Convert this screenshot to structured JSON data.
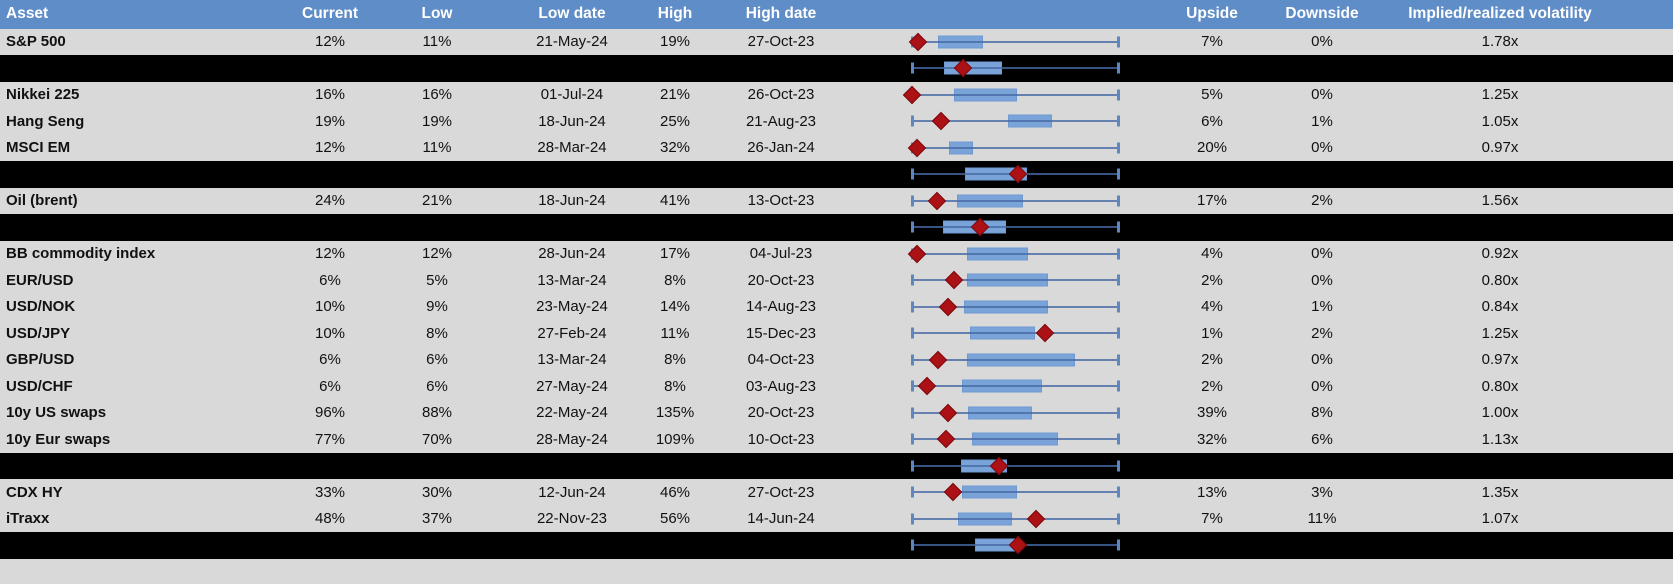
{
  "table": {
    "columns": [
      {
        "key": "asset",
        "label": "Asset"
      },
      {
        "key": "current",
        "label": "Current"
      },
      {
        "key": "low",
        "label": "Low"
      },
      {
        "key": "low_date",
        "label": "Low date"
      },
      {
        "key": "high",
        "label": "High"
      },
      {
        "key": "high_date",
        "label": "High date"
      },
      {
        "key": "range_chart",
        "label": ""
      },
      {
        "key": "upside",
        "label": "Upside"
      },
      {
        "key": "downside",
        "label": "Downside"
      },
      {
        "key": "implied_realized",
        "label": "Implied/realized volatility"
      }
    ],
    "rows": [
      {
        "type": "data",
        "asset": "S&P 500",
        "current": "12%",
        "low": "11%",
        "low_date": "21-May-24",
        "high": "19%",
        "high_date": "27-Oct-23",
        "upside": "7%",
        "downside": "0%",
        "implied_realized": "1.78x",
        "boxplot": {
          "whisker": [
            0,
            1
          ],
          "box": [
            0.128,
            0.346
          ],
          "diamond": 0.031
        }
      },
      {
        "type": "agg",
        "boxplot": {
          "whisker": [
            0,
            1
          ],
          "box": [
            0.157,
            0.435
          ],
          "diamond": 0.249
        }
      },
      {
        "type": "data",
        "asset": "Nikkei 225",
        "current": "16%",
        "low": "16%",
        "low_date": "01-Jul-24",
        "high": "21%",
        "high_date": "26-Oct-23",
        "upside": "5%",
        "downside": "0%",
        "implied_realized": "1.25x",
        "boxplot": {
          "whisker": [
            0,
            1
          ],
          "box": [
            0.205,
            0.512
          ],
          "diamond": 0.0
        }
      },
      {
        "type": "data",
        "asset": "Hang Seng",
        "current": "19%",
        "low": "19%",
        "low_date": "18-Jun-24",
        "high": "25%",
        "high_date": "21-Aug-23",
        "upside": "6%",
        "downside": "1%",
        "implied_realized": "1.05x",
        "boxplot": {
          "whisker": [
            0,
            1
          ],
          "box": [
            0.466,
            0.679
          ],
          "diamond": 0.141
        }
      },
      {
        "type": "data",
        "asset": "MSCI EM",
        "current": "12%",
        "low": "11%",
        "low_date": "28-Mar-24",
        "high": "32%",
        "high_date": "26-Jan-24",
        "upside": "20%",
        "downside": "0%",
        "implied_realized": "0.97x",
        "boxplot": {
          "whisker": [
            0,
            1
          ],
          "box": [
            0.181,
            0.298
          ],
          "diamond": 0.024
        }
      },
      {
        "type": "agg",
        "boxplot": {
          "whisker": [
            0,
            1
          ],
          "box": [
            0.257,
            0.557
          ],
          "diamond": 0.516
        }
      },
      {
        "type": "data",
        "asset": "Oil (brent)",
        "current": "24%",
        "low": "21%",
        "low_date": "18-Jun-24",
        "high": "41%",
        "high_date": "13-Oct-23",
        "upside": "17%",
        "downside": "2%",
        "implied_realized": "1.56x",
        "boxplot": {
          "whisker": [
            0,
            1
          ],
          "box": [
            0.217,
            0.54
          ],
          "diamond": 0.123
        }
      },
      {
        "type": "agg",
        "boxplot": {
          "whisker": [
            0,
            1
          ],
          "box": [
            0.152,
            0.455
          ],
          "diamond": 0.33
        }
      },
      {
        "type": "data",
        "asset": "BB commodity index",
        "current": "12%",
        "low": "12%",
        "low_date": "28-Jun-24",
        "high": "17%",
        "high_date": "04-Jul-23",
        "upside": "4%",
        "downside": "0%",
        "implied_realized": "0.92x",
        "boxplot": {
          "whisker": [
            0,
            1
          ],
          "box": [
            0.265,
            0.565
          ],
          "diamond": 0.023
        }
      },
      {
        "type": "data",
        "asset": "EUR/USD",
        "current": "6%",
        "low": "5%",
        "low_date": "13-Mar-24",
        "high": "8%",
        "high_date": "20-Oct-23",
        "upside": "2%",
        "downside": "0%",
        "implied_realized": "0.80x",
        "boxplot": {
          "whisker": [
            0,
            1
          ],
          "box": [
            0.265,
            0.662
          ],
          "diamond": 0.205
        }
      },
      {
        "type": "data",
        "asset": "USD/NOK",
        "current": "10%",
        "low": "9%",
        "low_date": "23-May-24",
        "high": "14%",
        "high_date": "14-Aug-23",
        "upside": "4%",
        "downside": "1%",
        "implied_realized": "0.84x",
        "boxplot": {
          "whisker": [
            0,
            1
          ],
          "box": [
            0.254,
            0.659
          ],
          "diamond": 0.176
        }
      },
      {
        "type": "data",
        "asset": "USD/JPY",
        "current": "10%",
        "low": "8%",
        "low_date": "27-Feb-24",
        "high": "11%",
        "high_date": "15-Dec-23",
        "upside": "1%",
        "downside": "2%",
        "implied_realized": "1.25x",
        "boxplot": {
          "whisker": [
            0,
            1
          ],
          "box": [
            0.282,
            0.597
          ],
          "diamond": 0.646
        }
      },
      {
        "type": "data",
        "asset": "GBP/USD",
        "current": "6%",
        "low": "6%",
        "low_date": "13-Mar-24",
        "high": "8%",
        "high_date": "04-Oct-23",
        "upside": "2%",
        "downside": "0%",
        "implied_realized": "0.97x",
        "boxplot": {
          "whisker": [
            0,
            1
          ],
          "box": [
            0.265,
            0.791
          ],
          "diamond": 0.127
        }
      },
      {
        "type": "data",
        "asset": "USD/CHF",
        "current": "6%",
        "low": "6%",
        "low_date": "27-May-24",
        "high": "8%",
        "high_date": "03-Aug-23",
        "upside": "2%",
        "downside": "0%",
        "implied_realized": "0.80x",
        "boxplot": {
          "whisker": [
            0,
            1
          ],
          "box": [
            0.241,
            0.63
          ],
          "diamond": 0.071
        }
      },
      {
        "type": "data",
        "asset": "10y US swaps",
        "current": "96%",
        "low": "88%",
        "low_date": "22-May-24",
        "high": "135%",
        "high_date": "20-Oct-23",
        "upside": "39%",
        "downside": "8%",
        "implied_realized": "1.00x",
        "boxplot": {
          "whisker": [
            0,
            1
          ],
          "box": [
            0.273,
            0.581
          ],
          "diamond": 0.176
        }
      },
      {
        "type": "data",
        "asset": "10y Eur swaps",
        "current": "77%",
        "low": "70%",
        "low_date": "28-May-24",
        "high": "109%",
        "high_date": "10-Oct-23",
        "upside": "32%",
        "downside": "6%",
        "implied_realized": "1.13x",
        "boxplot": {
          "whisker": [
            0,
            1
          ],
          "box": [
            0.29,
            0.71
          ],
          "diamond": 0.164
        }
      },
      {
        "type": "agg",
        "boxplot": {
          "whisker": [
            0,
            1
          ],
          "box": [
            0.238,
            0.46
          ],
          "diamond": 0.422
        }
      },
      {
        "type": "data",
        "asset": "CDX HY",
        "current": "33%",
        "low": "30%",
        "low_date": "12-Jun-24",
        "high": "46%",
        "high_date": "27-Oct-23",
        "upside": "13%",
        "downside": "3%",
        "implied_realized": "1.35x",
        "boxplot": {
          "whisker": [
            0,
            1
          ],
          "box": [
            0.244,
            0.508
          ],
          "diamond": 0.2
        }
      },
      {
        "type": "data",
        "asset": "iTraxx",
        "current": "48%",
        "low": "37%",
        "low_date": "22-Nov-23",
        "high": "56%",
        "high_date": "14-Jun-24",
        "upside": "7%",
        "downside": "11%",
        "implied_realized": "1.07x",
        "boxplot": {
          "whisker": [
            0,
            1
          ],
          "box": [
            0.222,
            0.484
          ],
          "diamond": 0.6
        }
      },
      {
        "type": "agg",
        "boxplot": {
          "whisker": [
            0,
            1
          ],
          "box": [
            0.306,
            0.516
          ],
          "diamond": 0.515
        }
      },
      {
        "type": "divider"
      },
      {
        "type": "footer"
      }
    ]
  },
  "chart_data": {
    "type": "boxplot",
    "orientation": "horizontal",
    "title": "",
    "x_axis": {
      "tick_labels_shown": false,
      "range_normalized": [
        0,
        1
      ]
    },
    "marker_semantics": {
      "whiskers": "low-to-high range",
      "box": "middle range band",
      "diamond": "current level marker"
    },
    "rows": [
      {
        "label": "S&P 500",
        "whisker": [
          0,
          1
        ],
        "box": [
          0.128,
          0.346
        ],
        "diamond": 0.031
      },
      {
        "label": "",
        "whisker": [
          0,
          1
        ],
        "box": [
          0.157,
          0.435
        ],
        "diamond": 0.249
      },
      {
        "label": "Nikkei 225",
        "whisker": [
          0,
          1
        ],
        "box": [
          0.205,
          0.512
        ],
        "diamond": 0.0
      },
      {
        "label": "Hang Seng",
        "whisker": [
          0,
          1
        ],
        "box": [
          0.466,
          0.679
        ],
        "diamond": 0.141
      },
      {
        "label": "MSCI EM",
        "whisker": [
          0,
          1
        ],
        "box": [
          0.181,
          0.298
        ],
        "diamond": 0.024
      },
      {
        "label": "",
        "whisker": [
          0,
          1
        ],
        "box": [
          0.257,
          0.557
        ],
        "diamond": 0.516
      },
      {
        "label": "Oil (brent)",
        "whisker": [
          0,
          1
        ],
        "box": [
          0.217,
          0.54
        ],
        "diamond": 0.123
      },
      {
        "label": "",
        "whisker": [
          0,
          1
        ],
        "box": [
          0.152,
          0.455
        ],
        "diamond": 0.33
      },
      {
        "label": "BB commodity index",
        "whisker": [
          0,
          1
        ],
        "box": [
          0.265,
          0.565
        ],
        "diamond": 0.023
      },
      {
        "label": "EUR/USD",
        "whisker": [
          0,
          1
        ],
        "box": [
          0.265,
          0.662
        ],
        "diamond": 0.205
      },
      {
        "label": "USD/NOK",
        "whisker": [
          0,
          1
        ],
        "box": [
          0.254,
          0.659
        ],
        "diamond": 0.176
      },
      {
        "label": "USD/JPY",
        "whisker": [
          0,
          1
        ],
        "box": [
          0.282,
          0.597
        ],
        "diamond": 0.646
      },
      {
        "label": "GBP/USD",
        "whisker": [
          0,
          1
        ],
        "box": [
          0.265,
          0.791
        ],
        "diamond": 0.127
      },
      {
        "label": "USD/CHF",
        "whisker": [
          0,
          1
        ],
        "box": [
          0.241,
          0.63
        ],
        "diamond": 0.071
      },
      {
        "label": "10y US swaps",
        "whisker": [
          0,
          1
        ],
        "box": [
          0.273,
          0.581
        ],
        "diamond": 0.176
      },
      {
        "label": "10y Eur swaps",
        "whisker": [
          0,
          1
        ],
        "box": [
          0.29,
          0.71
        ],
        "diamond": 0.164
      },
      {
        "label": "",
        "whisker": [
          0,
          1
        ],
        "box": [
          0.238,
          0.46
        ],
        "diamond": 0.422
      },
      {
        "label": "CDX HY",
        "whisker": [
          0,
          1
        ],
        "box": [
          0.244,
          0.508
        ],
        "diamond": 0.2
      },
      {
        "label": "iTraxx",
        "whisker": [
          0,
          1
        ],
        "box": [
          0.222,
          0.484
        ],
        "diamond": 0.6
      },
      {
        "label": "",
        "whisker": [
          0,
          1
        ],
        "box": [
          0.306,
          0.516
        ],
        "diamond": 0.515
      }
    ]
  },
  "colors": {
    "header_bg": "#5f8dc7",
    "header_text": "#ffffff",
    "row_bg": "#d9d9d9",
    "separator_bg": "#000000",
    "text": "#111111",
    "box_fill": "#7aa3d8",
    "box_border": "#6d9ad2",
    "whisker": "rgba(70,105,165,0.8)",
    "whisker_cap": "#5f87bf",
    "diamond_fill": "#ab1115",
    "diamond_border": "#7c0b0e"
  }
}
